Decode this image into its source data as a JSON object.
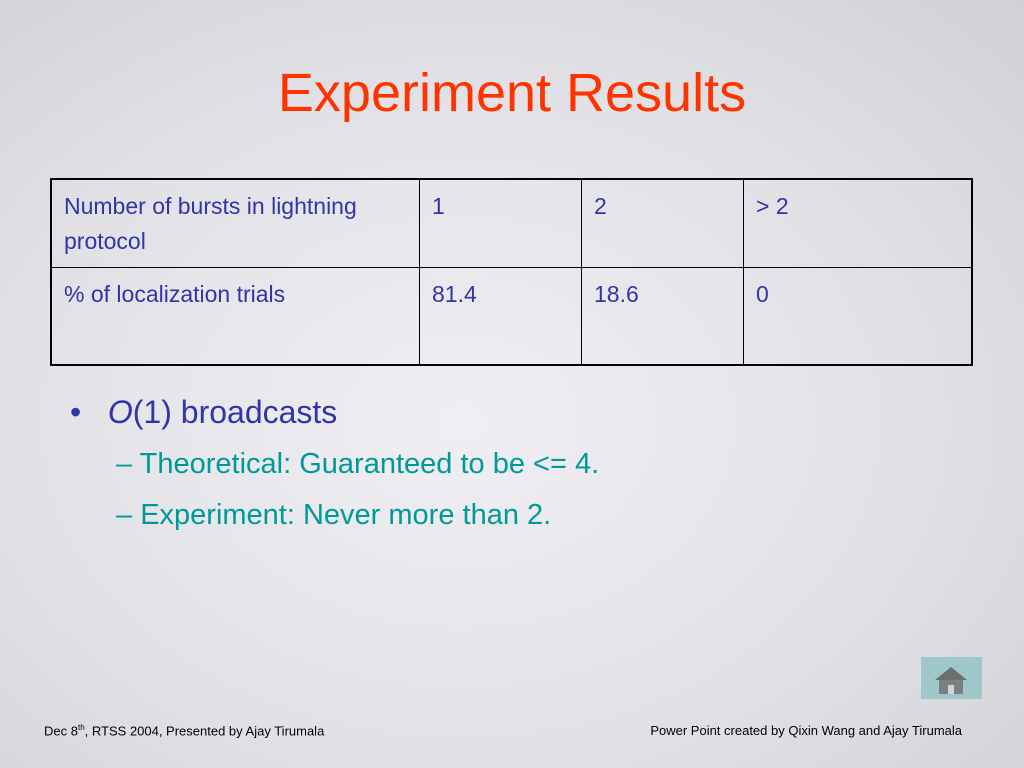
{
  "title": "Experiment Results",
  "table": {
    "rows": [
      [
        "Number of bursts in lightning protocol",
        1,
        2,
        "> 2"
      ],
      [
        "% of localization trials",
        81.4,
        18.6,
        0
      ]
    ]
  },
  "bullets": [
    {
      "italic": "O",
      "text": "(1) broadcasts",
      "sub": [
        "Theoretical: Guaranteed to be <= 4.",
        "Experiment: Never more than 2."
      ]
    }
  ],
  "footer": {
    "left": [
      "Dec 8",
      "th",
      ", RTSS 2004, Presented by Ajay Tirumala"
    ],
    "right": "Power Point created  by Qixin Wang and Ajay Tirumala"
  }
}
